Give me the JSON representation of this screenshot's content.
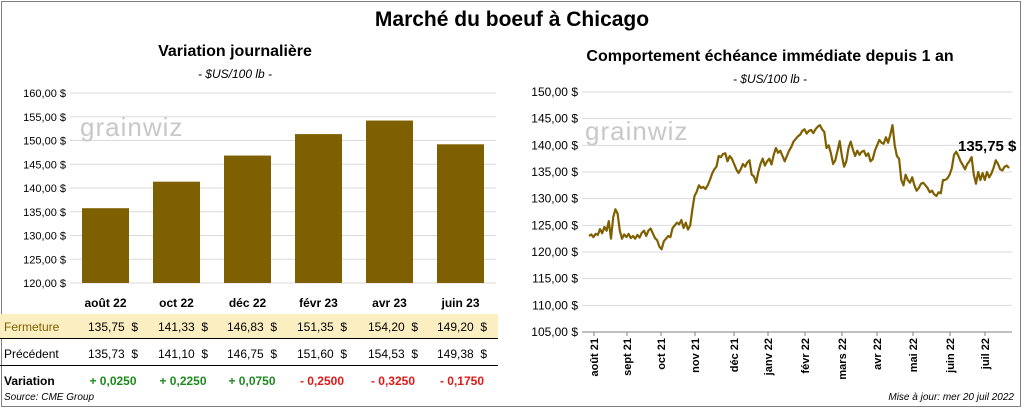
{
  "title": "Marché du boeuf à Chicago",
  "left_panel": {
    "title": "Variation journalière",
    "unit": "- $US/100 lb -",
    "watermark": "grainwiz"
  },
  "right_panel": {
    "title": "Comportement échéance immédiate depuis 1 an",
    "unit": "- $US/100 lb -",
    "watermark": "grainwiz",
    "last_label": "135,75 $"
  },
  "table": {
    "rows": [
      {
        "label": "Fermeture",
        "values": [
          "135,75  $",
          "141,33  $",
          "146,83  $",
          "151,35  $",
          "154,20  $",
          "149,20  $"
        ]
      },
      {
        "label": "Précédent",
        "values": [
          "135,73  $",
          "141,10  $",
          "146,75  $",
          "151,60  $",
          "154,53  $",
          "149,38  $"
        ]
      },
      {
        "label": "Variation",
        "values": [
          "+ 0,0250",
          "+ 0,2250",
          "+ 0,0750",
          "- 0,2500",
          "- 0,3250",
          "- 0,1750"
        ]
      }
    ],
    "colors": {
      "highlight": "#fbeec0",
      "positive": "#1e8a1e",
      "negative": "#e01818"
    }
  },
  "footer": {
    "source": "Source: CME Group",
    "updated": "Mise à jour: mer 20 juil 2022"
  },
  "chart_data": [
    {
      "type": "bar",
      "title": "Variation journalière",
      "categories": [
        "août 22",
        "oct 22",
        "déc 22",
        "févr 23",
        "avr 23",
        "juin 23"
      ],
      "values": [
        135.75,
        141.33,
        146.83,
        151.35,
        154.2,
        149.2
      ],
      "ylim": [
        120,
        160
      ],
      "yticks": [
        "120,00 $",
        "125,00 $",
        "130,00 $",
        "135,00 $",
        "140,00 $",
        "145,00 $",
        "150,00 $",
        "155,00 $",
        "160,00 $"
      ],
      "color": "#7f6000",
      "grid": true
    },
    {
      "type": "line",
      "title": "Comportement échéance immédiate depuis 1 an",
      "xticks": [
        "août 21",
        "sept 21",
        "oct 21",
        "nov 21",
        "déc 21",
        "janv 22",
        "févr 22",
        "mars 22",
        "avr 22",
        "mai 22",
        "juin 22",
        "juil 22"
      ],
      "ylim": [
        105,
        150
      ],
      "yticks": [
        "105,00 $",
        "110,00 $",
        "115,00 $",
        "120,00 $",
        "125,00 $",
        "130,00 $",
        "135,00 $",
        "140,00 $",
        "145,00 $",
        "150,00 $"
      ],
      "color": "#7f6000",
      "grid": true,
      "values": [
        123.0,
        123.3,
        122.8,
        123.4,
        123.2,
        124.3,
        123.5,
        124.7,
        124.0,
        125.8,
        122.5,
        126.5,
        128.0,
        127.2,
        124.0,
        122.5,
        123.3,
        122.8,
        123.4,
        122.6,
        123.0,
        122.5,
        123.2,
        122.7,
        123.6,
        124.0,
        123.0,
        124.0,
        124.4,
        123.5,
        122.6,
        122.2,
        121.0,
        120.5,
        122.0,
        122.5,
        123.0,
        122.8,
        124.5,
        125.0,
        125.5,
        125.2,
        126.0,
        124.5,
        125.5,
        124.2,
        125.0,
        128.0,
        130.5,
        131.3,
        132.5,
        132.0,
        132.2,
        131.8,
        132.5,
        133.5,
        134.7,
        135.5,
        136.0,
        138.0,
        137.8,
        138.4,
        138.5,
        137.0,
        138.0,
        137.5,
        136.5,
        135.5,
        134.8,
        135.5,
        136.5,
        136.0,
        136.8,
        137.2,
        134.5,
        134.2,
        133.0,
        135.0,
        136.5,
        137.5,
        136.2,
        137.0,
        137.5,
        136.4,
        138.2,
        139.5,
        138.6,
        139.0,
        138.0,
        137.0,
        138.0,
        139.0,
        139.7,
        140.7,
        141.2,
        141.7,
        142.0,
        142.7,
        143.0,
        142.2,
        142.7,
        142.9,
        142.3,
        143.0,
        143.5,
        143.8,
        143.0,
        142.5,
        139.5,
        140.0,
        138.5,
        136.5,
        137.2,
        139.0,
        140.8,
        138.0,
        136.0,
        137.0,
        139.5,
        140.7,
        139.2,
        138.0,
        139.0,
        138.2,
        138.8,
        139.0,
        138.0,
        138.5,
        137.0,
        137.4,
        139.0,
        140.0,
        141.0,
        140.5,
        140.3,
        141.5,
        140.5,
        142.0,
        143.8,
        140.0,
        138.0,
        137.5,
        133.5,
        132.5,
        134.5,
        133.5,
        133.0,
        134.0,
        132.5,
        131.5,
        132.0,
        132.8,
        133.0,
        132.5,
        132.0,
        131.2,
        131.5,
        130.8,
        130.5,
        131.2,
        131.0,
        133.5,
        133.5,
        133.8,
        134.5,
        135.7,
        138.2,
        138.8,
        138.0,
        137.0,
        136.3,
        135.5,
        136.5,
        137.0,
        137.8,
        134.5,
        132.8,
        135.0,
        133.5,
        134.8,
        133.5,
        135.0,
        134.0,
        134.7,
        135.8,
        137.2,
        136.5,
        135.5,
        135.3,
        136.0,
        136.2,
        135.75
      ]
    }
  ]
}
